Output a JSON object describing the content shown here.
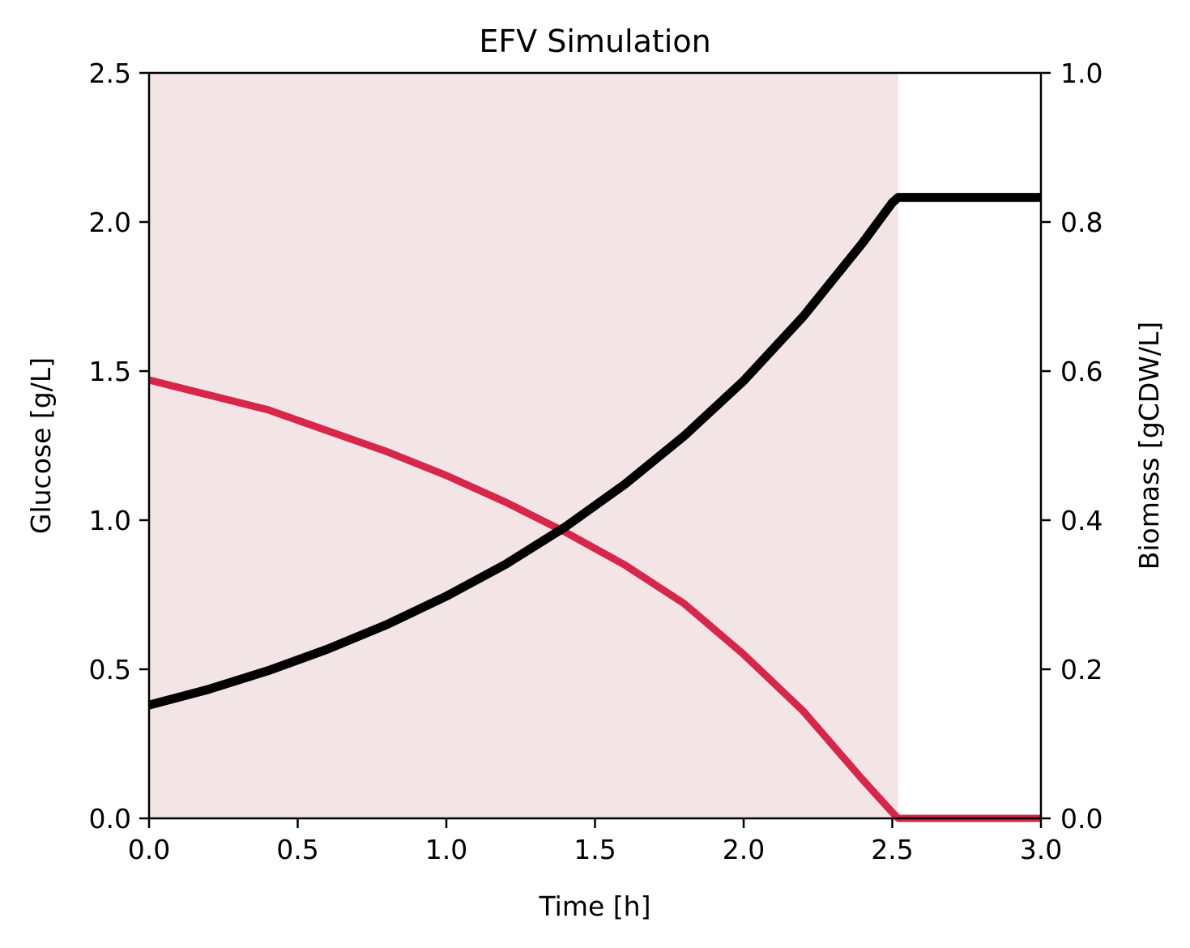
{
  "chart_data": {
    "type": "line",
    "title": "EFV Simulation",
    "xlabel": "Time [h]",
    "ylabel_left": "Glucose [g/L]",
    "ylabel_right": "Biomass [gCDW/L]",
    "xlim": [
      0,
      3
    ],
    "ylim_left": [
      0,
      2.5
    ],
    "ylim_right": [
      0,
      1
    ],
    "xticks": [
      "0.0",
      "0.5",
      "1.0",
      "1.5",
      "2.0",
      "2.5",
      "3.0"
    ],
    "yticks_left": [
      "0.0",
      "0.5",
      "1.0",
      "1.5",
      "2.0",
      "2.5"
    ],
    "yticks_right": [
      "0.0",
      "0.2",
      "0.4",
      "0.6",
      "0.8",
      "1.0"
    ],
    "grid": false,
    "shaded_region": {
      "x_start": 0,
      "x_end": 2.52,
      "color": "#f3e4e5"
    },
    "series": [
      {
        "axis": "left",
        "color": "#d6264a",
        "x": [
          0,
          0.2,
          0.4,
          0.6,
          0.8,
          1.0,
          1.2,
          1.4,
          1.6,
          1.8,
          2.0,
          2.2,
          2.4,
          2.5,
          2.52,
          3.0
        ],
        "y": [
          1.47,
          1.42,
          1.37,
          1.3,
          1.23,
          1.15,
          1.06,
          0.96,
          0.85,
          0.72,
          0.55,
          0.36,
          0.13,
          0.02,
          0.0,
          0.0
        ]
      },
      {
        "axis": "right",
        "color": "#000000",
        "x": [
          0,
          0.2,
          0.4,
          0.6,
          0.8,
          1.0,
          1.2,
          1.4,
          1.6,
          1.8,
          2.0,
          2.2,
          2.4,
          2.5,
          2.52,
          3.0
        ],
        "y": [
          0.152,
          0.173,
          0.198,
          0.227,
          0.26,
          0.298,
          0.341,
          0.391,
          0.448,
          0.513,
          0.587,
          0.673,
          0.772,
          0.826,
          0.833,
          0.833
        ]
      }
    ]
  }
}
